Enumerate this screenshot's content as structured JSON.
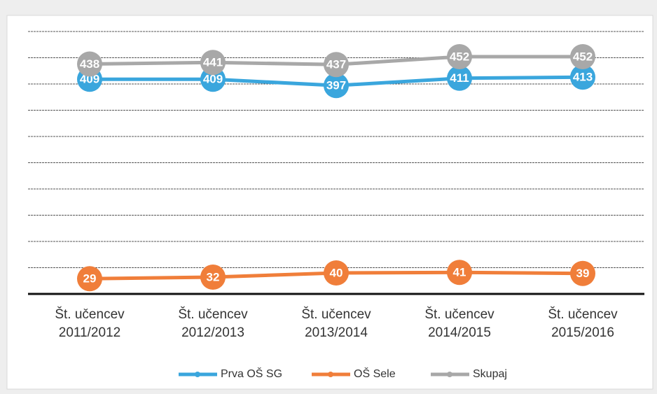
{
  "chart_data": {
    "type": "line",
    "categories": [
      "Št. učencev 2011/2012",
      "Št. učencev 2012/2013",
      "Št. učencev 2013/2014",
      "Št. učencev 2014/2015",
      "Št. učencev 2015/2016"
    ],
    "series": [
      {
        "name": "Prva OŠ SG",
        "color": "#3aa6dd",
        "values": [
          409,
          409,
          397,
          411,
          413
        ]
      },
      {
        "name": "OŠ Sele",
        "color": "#f07e3a",
        "values": [
          29,
          32,
          40,
          41,
          39
        ]
      },
      {
        "name": "Skupaj",
        "color": "#a8a8a8",
        "values": [
          438,
          441,
          437,
          452,
          452
        ]
      }
    ],
    "ylim": [
      0,
      500
    ],
    "yticks": [
      0,
      50,
      100,
      150,
      200,
      250,
      300,
      350,
      400,
      450,
      500
    ],
    "grid": true,
    "legend": "bottom"
  }
}
